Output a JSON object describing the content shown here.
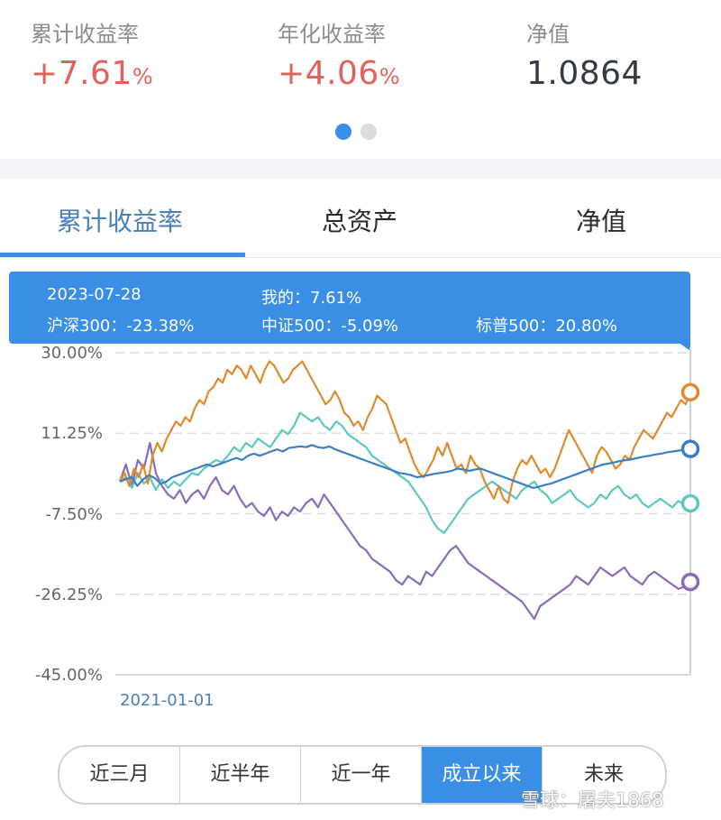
{
  "stats": [
    {
      "label": "累计收益率",
      "value": "+7.61",
      "unit": "%"
    },
    {
      "label": "年化收益率",
      "value": "+4.06",
      "unit": "%"
    },
    {
      "label": "净值",
      "value": "1.0864",
      "unit": ""
    }
  ],
  "pager": {
    "count": 2,
    "active": 0
  },
  "tabs": [
    {
      "label": "累计收益率",
      "active": true
    },
    {
      "label": "总资产",
      "active": false
    },
    {
      "label": "净值",
      "active": false
    }
  ],
  "tooltip": {
    "date": "2023-07-28",
    "mine": "我的：7.61%",
    "hs300": "沪深300：-23.38%",
    "zz500": "中证500：-5.09%",
    "sp500": "标普500：20.80%"
  },
  "ranges": [
    {
      "label": "近三月",
      "active": false
    },
    {
      "label": "近半年",
      "active": false
    },
    {
      "label": "近一年",
      "active": false
    },
    {
      "label": "成立以来",
      "active": true
    },
    {
      "label": "未来",
      "active": false
    }
  ],
  "watermark": "雪球：屠夫1868",
  "colors": {
    "accent": "#3a8ee6",
    "positive": "#e0625a",
    "sp500": "#e08a2e",
    "mine": "#3a7fc4",
    "zz500": "#5cc8c0",
    "hs300": "#8b6bb8"
  },
  "chart_data": {
    "type": "line",
    "x_start_label": "2021-01-01",
    "x_end": "2023-07-28",
    "yticks": [
      "30.00%",
      "11.25%",
      "-7.50%",
      "-26.25%",
      "-45.00%"
    ],
    "ylim": [
      -45.0,
      30.0
    ],
    "grid": true,
    "series": [
      {
        "name": "标普500",
        "color": "#e08a2e",
        "values": [
          0,
          2,
          -1,
          3,
          1,
          4,
          -0.5,
          6,
          9,
          7,
          10,
          12,
          14,
          13,
          15,
          14,
          17,
          19,
          18,
          21,
          22,
          24,
          23,
          26,
          25,
          27,
          26,
          24,
          27,
          25,
          23,
          26,
          28,
          27,
          25,
          23,
          24,
          26,
          27,
          28,
          26,
          24,
          22,
          20,
          18,
          19,
          21,
          19,
          16,
          15,
          13,
          14,
          12,
          15,
          17,
          20,
          19,
          18,
          15,
          12,
          9,
          10,
          7,
          4,
          2,
          1,
          3,
          5,
          8,
          6,
          9,
          6,
          3,
          4,
          2,
          6,
          4,
          3,
          0,
          -2,
          -4,
          -1,
          -4,
          -5,
          0,
          3,
          5,
          4,
          6,
          4,
          2,
          3,
          1,
          3,
          6,
          9,
          12,
          10,
          8,
          6,
          4,
          2,
          6,
          8,
          7,
          5,
          3,
          4,
          6,
          5,
          8,
          10,
          12,
          11,
          10,
          12,
          14,
          16,
          15,
          17,
          19,
          18,
          20.8
        ]
      },
      {
        "name": "我的",
        "color": "#3a7fc4",
        "values": [
          0,
          0.5,
          1,
          -1,
          0.5,
          1.5,
          0.8,
          -0.5,
          0,
          1,
          1.5,
          2,
          2.5,
          3,
          3.5,
          4,
          3.5,
          4,
          4.5,
          5,
          5.5,
          5,
          6,
          6.5,
          6,
          6.5,
          7,
          7.5,
          7,
          7.8,
          8,
          8.2,
          8,
          8.5,
          8,
          7.8,
          8.2,
          7.5,
          7,
          6.5,
          6,
          5.5,
          5,
          4.5,
          4,
          3.5,
          3,
          2.5,
          2,
          1.8,
          1.5,
          1,
          1.2,
          1.5,
          1.8,
          2,
          2.2,
          2.5,
          3,
          2.8,
          2.5,
          2.8,
          3,
          2.5,
          2,
          1.5,
          1,
          0.5,
          0,
          -0.5,
          -1,
          -1.5,
          -1.2,
          -0.8,
          -0.5,
          0,
          0.5,
          1,
          1.5,
          2,
          2.5,
          3,
          3.5,
          4,
          4.2,
          4.5,
          4.8,
          5,
          5.2,
          5.5,
          5.8,
          6,
          6.3,
          6.5,
          6.8,
          7,
          7.2,
          7.4,
          7.61
        ]
      },
      {
        "name": "中证500",
        "color": "#5cc8c0",
        "values": [
          0,
          1,
          -1.5,
          2,
          -0.5,
          1,
          -2,
          0.5,
          -1.5,
          0,
          -1,
          0.5,
          2,
          1.5,
          3,
          4,
          5,
          4.5,
          6,
          8,
          7,
          9,
          8,
          10,
          9,
          8,
          10,
          12,
          11,
          13,
          16,
          15,
          14,
          15,
          13,
          12,
          14,
          13,
          11,
          10,
          9,
          8,
          6,
          5,
          4,
          3,
          2,
          1,
          0,
          -2,
          -4,
          -6,
          -9,
          -11,
          -12,
          -10,
          -8,
          -6,
          -4,
          -3,
          -2,
          -1,
          0,
          -1,
          -2,
          -3,
          -4,
          -2,
          -1,
          0,
          -2,
          -3,
          -5,
          -4,
          -3,
          -2,
          -4,
          -5,
          -6,
          -5,
          -3,
          -4,
          -2,
          -1,
          -3,
          -4,
          -3,
          -5,
          -6,
          -5,
          -4,
          -5,
          -6,
          -4.5,
          -5.5,
          -5.09
        ]
      },
      {
        "name": "沪深300",
        "color": "#8b6bb8",
        "values": [
          0,
          4,
          -1,
          5,
          3,
          9,
          2,
          -1,
          -3,
          -4,
          -2,
          -5,
          -3,
          -2,
          -4,
          -1,
          1,
          -2,
          -3,
          -1,
          -4,
          -6,
          -5,
          -7,
          -8,
          -6,
          -9,
          -7,
          -8,
          -6,
          -7,
          -5,
          -4,
          -6,
          -3,
          -5,
          -7,
          -9,
          -11,
          -13,
          -15,
          -16,
          -18,
          -19,
          -20,
          -21,
          -23,
          -24,
          -22,
          -23,
          -24,
          -21,
          -22,
          -20,
          -18,
          -16,
          -15,
          -17,
          -19,
          -20,
          -21,
          -22,
          -23,
          -24,
          -25,
          -26,
          -27,
          -28,
          -30,
          -32,
          -29,
          -28,
          -27,
          -26,
          -25,
          -24,
          -22,
          -23,
          -24,
          -22,
          -20,
          -21,
          -22,
          -21,
          -20,
          -22,
          -23,
          -24,
          -22,
          -21,
          -22,
          -23,
          -24,
          -25,
          -24.5,
          -23.38
        ]
      }
    ]
  }
}
